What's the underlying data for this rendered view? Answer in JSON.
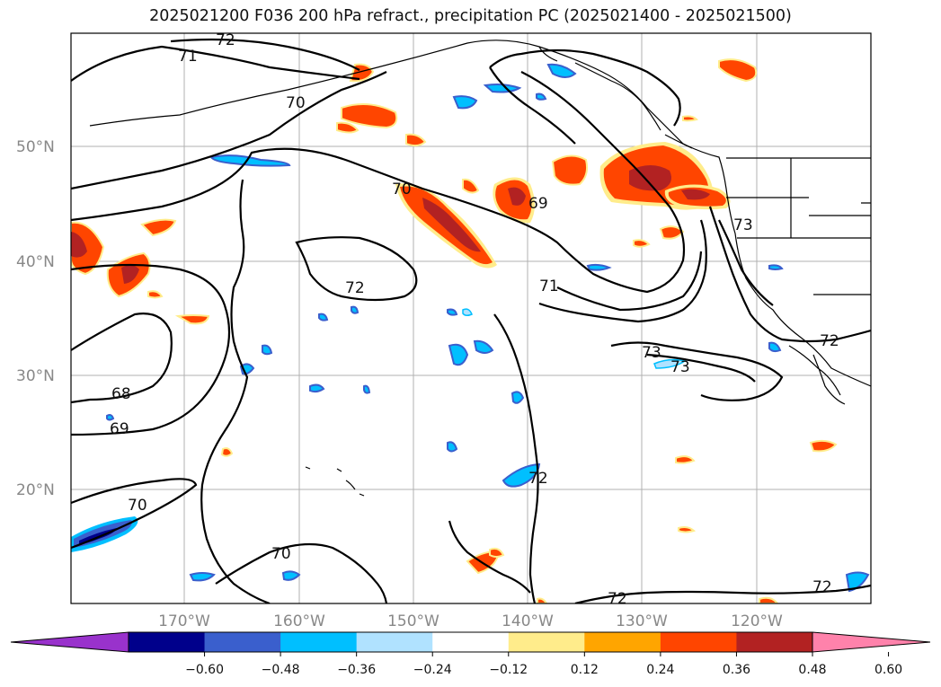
{
  "title": "2025021200 F036 200 hPa refract., precipitation PC (2025021400 - 2025021500)",
  "lat_labels": [
    "50°N",
    "40°N",
    "30°N",
    "20°N"
  ],
  "lon_labels": [
    "170°W",
    "160°W",
    "150°W",
    "140°W",
    "130°W",
    "120°W"
  ],
  "contour_labels": [
    "72",
    "71",
    "70",
    "70",
    "69",
    "72",
    "71",
    "68",
    "69",
    "70",
    "70",
    "72",
    "73",
    "73",
    "72",
    "73",
    "72",
    "72"
  ],
  "colorbar": {
    "colors": [
      "#9932cc",
      "#00008b",
      "#3a5fcd",
      "#00bfff",
      "#b0e2ff",
      "#ffffff",
      "#ffec8b",
      "#ffa500",
      "#ff4500",
      "#b22222",
      "#ff82ab"
    ],
    "ticks": [
      "−0.60",
      "−0.48",
      "−0.36",
      "−0.24",
      "−0.12",
      "0.12",
      "0.24",
      "0.36",
      "0.48",
      "0.60"
    ]
  },
  "colors": {
    "grid": "#b0b0b0",
    "contour": "#000000",
    "pos_outer": "#ffec8b",
    "pos_mid": "#ff4500",
    "pos_inner": "#b22222",
    "neg_outer": "#00bfff",
    "neg_mid": "#3a5fcd",
    "neg_inner": "#00008b"
  }
}
